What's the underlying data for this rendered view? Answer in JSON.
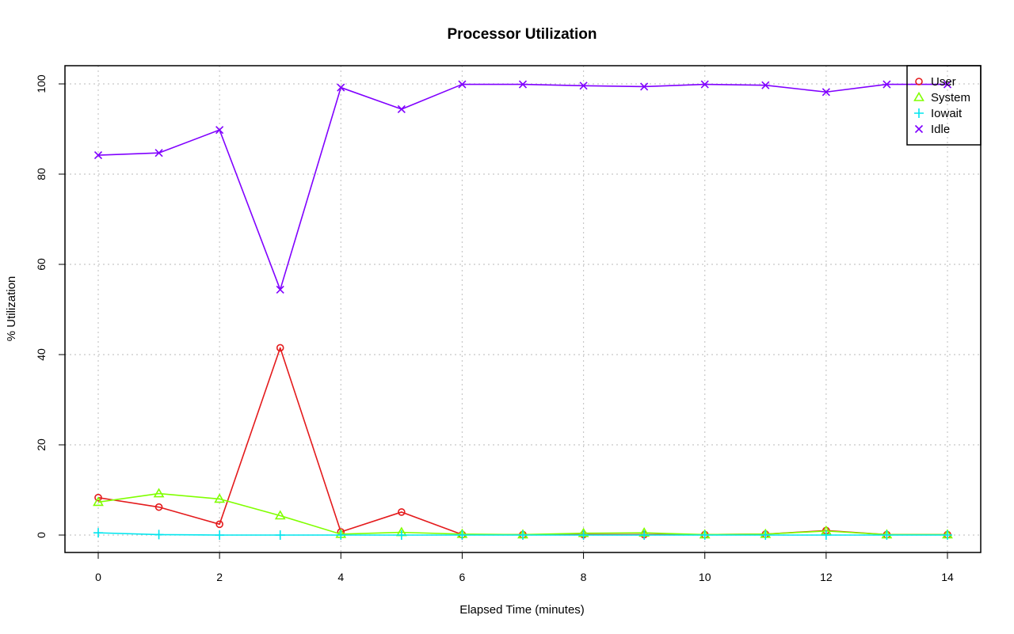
{
  "chart_data": {
    "type": "line",
    "title": "Processor Utilization",
    "xlabel": "Elapsed Time (minutes)",
    "ylabel": "% Utilization",
    "xlim": [
      0,
      14
    ],
    "ylim": [
      0,
      100
    ],
    "x_ticks": [
      "0",
      "2",
      "4",
      "6",
      "8",
      "10",
      "12",
      "14"
    ],
    "y_ticks": [
      "0",
      "20",
      "40",
      "60",
      "80",
      "100"
    ],
    "grid": true,
    "legend_position": "top-right",
    "x": [
      0,
      1,
      2,
      3,
      4,
      5,
      6,
      7,
      8,
      9,
      10,
      11,
      12,
      13,
      14
    ],
    "series": [
      {
        "name": "User",
        "color": "#e41a1c",
        "marker": "circle",
        "values": [
          8.3,
          6.2,
          2.4,
          41.5,
          0.7,
          5.1,
          0.1,
          0.1,
          0.1,
          0.1,
          0.1,
          0.2,
          1.0,
          0.1,
          0.1
        ]
      },
      {
        "name": "System",
        "color": "#80ff00",
        "marker": "triangle",
        "values": [
          7.3,
          9.2,
          8.0,
          4.3,
          0.2,
          0.6,
          0.2,
          0.1,
          0.4,
          0.5,
          0.1,
          0.2,
          0.9,
          0.1,
          0.1
        ]
      },
      {
        "name": "Iowait",
        "color": "#00e5ee",
        "marker": "plus",
        "values": [
          0.5,
          0.1,
          0.0,
          0.0,
          0.0,
          0.0,
          0.0,
          0.0,
          0.0,
          0.0,
          0.0,
          0.0,
          0.0,
          0.0,
          0.0
        ]
      },
      {
        "name": "Idle",
        "color": "#8000ff",
        "marker": "cross",
        "values": [
          84.2,
          84.7,
          89.8,
          54.4,
          99.2,
          94.4,
          99.9,
          99.9,
          99.6,
          99.4,
          99.9,
          99.7,
          98.2,
          99.9,
          99.9
        ]
      }
    ]
  }
}
